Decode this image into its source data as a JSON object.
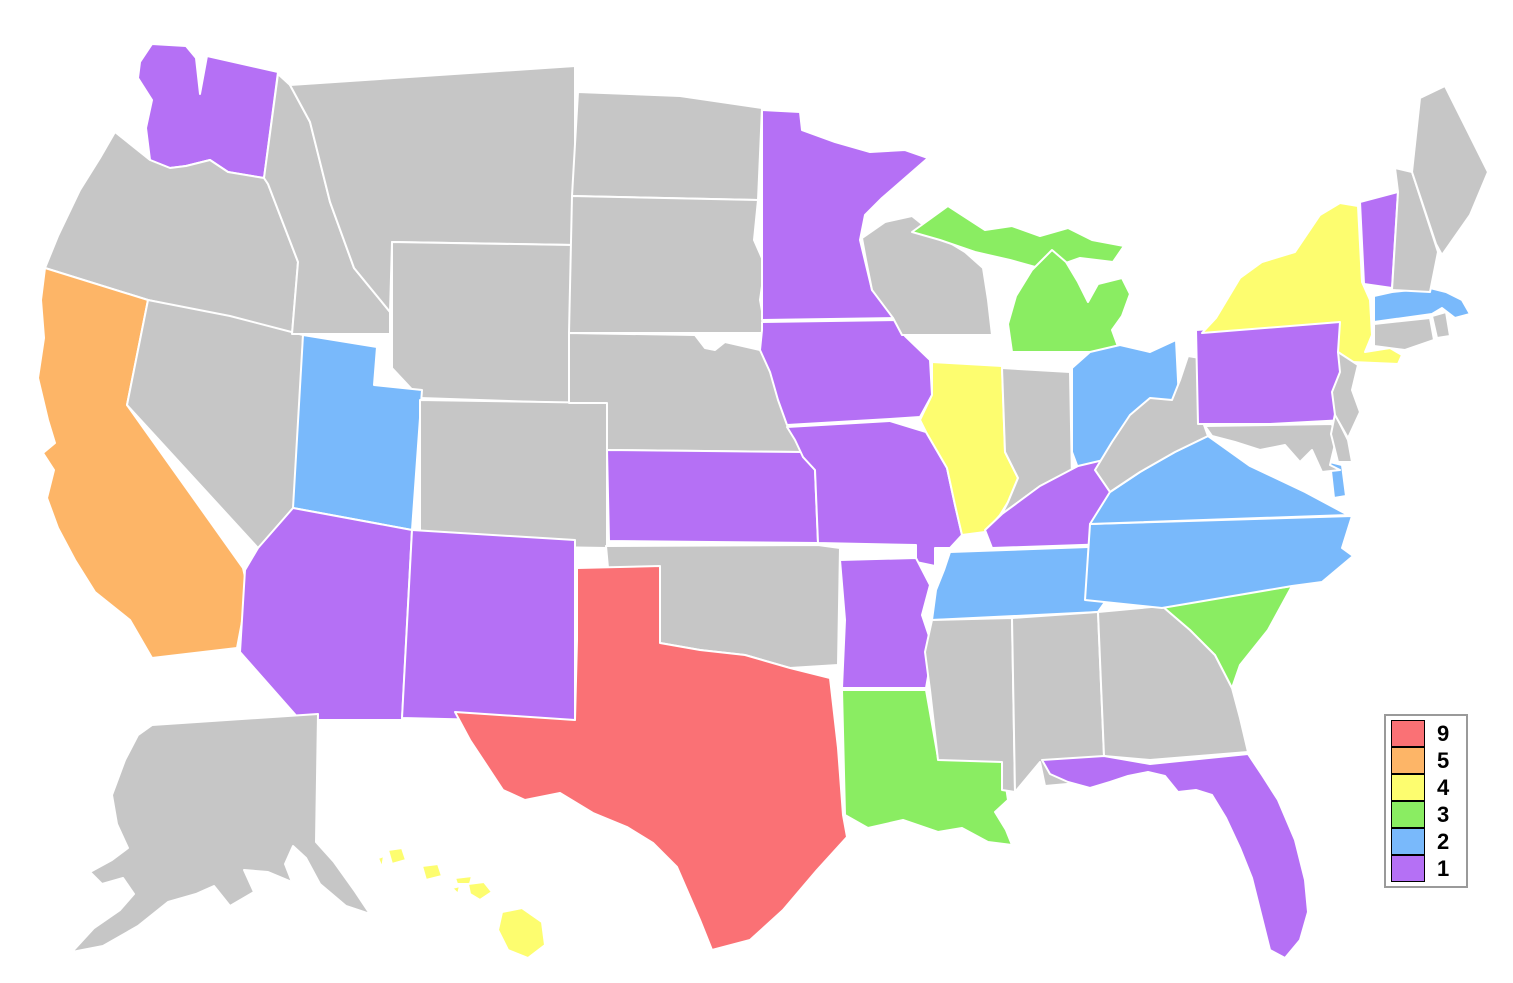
{
  "map": {
    "region": "United States choropleth",
    "background_color": "#FFFFFF",
    "state_border_color": "#FFFFFF",
    "no_data_color": "#C6C6C6"
  },
  "legend": {
    "position": "right",
    "entries": [
      {
        "label": "9",
        "color": "#FA7175"
      },
      {
        "label": "5",
        "color": "#FDB567"
      },
      {
        "label": "4",
        "color": "#FDFD6F"
      },
      {
        "label": "3",
        "color": "#8AED62"
      },
      {
        "label": "2",
        "color": "#79B9FB"
      },
      {
        "label": "1",
        "color": "#B570F5"
      }
    ]
  },
  "states": [
    {
      "id": "WA",
      "name": "Washington",
      "value": "1"
    },
    {
      "id": "OR",
      "name": "Oregon",
      "value": null
    },
    {
      "id": "CA",
      "name": "California",
      "value": "5"
    },
    {
      "id": "NV",
      "name": "Nevada",
      "value": null
    },
    {
      "id": "ID",
      "name": "Idaho",
      "value": null
    },
    {
      "id": "MT",
      "name": "Montana",
      "value": null
    },
    {
      "id": "WY",
      "name": "Wyoming",
      "value": null
    },
    {
      "id": "UT",
      "name": "Utah",
      "value": "2"
    },
    {
      "id": "CO",
      "name": "Colorado",
      "value": null
    },
    {
      "id": "AZ",
      "name": "Arizona",
      "value": "1"
    },
    {
      "id": "NM",
      "name": "New Mexico",
      "value": "1"
    },
    {
      "id": "ND",
      "name": "North Dakota",
      "value": null
    },
    {
      "id": "SD",
      "name": "South Dakota",
      "value": null
    },
    {
      "id": "NE",
      "name": "Nebraska",
      "value": null
    },
    {
      "id": "KS",
      "name": "Kansas",
      "value": "1"
    },
    {
      "id": "OK",
      "name": "Oklahoma",
      "value": null
    },
    {
      "id": "TX",
      "name": "Texas",
      "value": "9"
    },
    {
      "id": "MN",
      "name": "Minnesota",
      "value": "1"
    },
    {
      "id": "IA",
      "name": "Iowa",
      "value": "1"
    },
    {
      "id": "MO",
      "name": "Missouri",
      "value": "1"
    },
    {
      "id": "AR",
      "name": "Arkansas",
      "value": "1"
    },
    {
      "id": "LA",
      "name": "Louisiana",
      "value": "3"
    },
    {
      "id": "WI",
      "name": "Wisconsin",
      "value": null
    },
    {
      "id": "IL",
      "name": "Illinois",
      "value": "4"
    },
    {
      "id": "MI",
      "name": "Michigan",
      "value": "3"
    },
    {
      "id": "IN",
      "name": "Indiana",
      "value": null
    },
    {
      "id": "OH",
      "name": "Ohio",
      "value": "2"
    },
    {
      "id": "KY",
      "name": "Kentucky",
      "value": "1"
    },
    {
      "id": "TN",
      "name": "Tennessee",
      "value": "2"
    },
    {
      "id": "MS",
      "name": "Mississippi",
      "value": null
    },
    {
      "id": "AL",
      "name": "Alabama",
      "value": null
    },
    {
      "id": "GA",
      "name": "Georgia",
      "value": null
    },
    {
      "id": "SC",
      "name": "South Carolina",
      "value": "3"
    },
    {
      "id": "NC",
      "name": "North Carolina",
      "value": "2"
    },
    {
      "id": "VA",
      "name": "Virginia",
      "value": "2"
    },
    {
      "id": "WV",
      "name": "West Virginia",
      "value": null
    },
    {
      "id": "PA",
      "name": "Pennsylvania",
      "value": "1"
    },
    {
      "id": "NY",
      "name": "New York",
      "value": "4"
    },
    {
      "id": "MD",
      "name": "Maryland",
      "value": null
    },
    {
      "id": "DE",
      "name": "Delaware",
      "value": null
    },
    {
      "id": "NJ",
      "name": "New Jersey",
      "value": null
    },
    {
      "id": "CT",
      "name": "Connecticut",
      "value": null
    },
    {
      "id": "RI",
      "name": "Rhode Island",
      "value": null
    },
    {
      "id": "MA",
      "name": "Massachusetts",
      "value": "2"
    },
    {
      "id": "VT",
      "name": "Vermont",
      "value": "1"
    },
    {
      "id": "NH",
      "name": "New Hampshire",
      "value": null
    },
    {
      "id": "ME",
      "name": "Maine",
      "value": null
    },
    {
      "id": "FL",
      "name": "Florida",
      "value": "1"
    },
    {
      "id": "AK",
      "name": "Alaska",
      "value": null
    },
    {
      "id": "HI",
      "name": "Hawaii",
      "value": "4"
    }
  ]
}
